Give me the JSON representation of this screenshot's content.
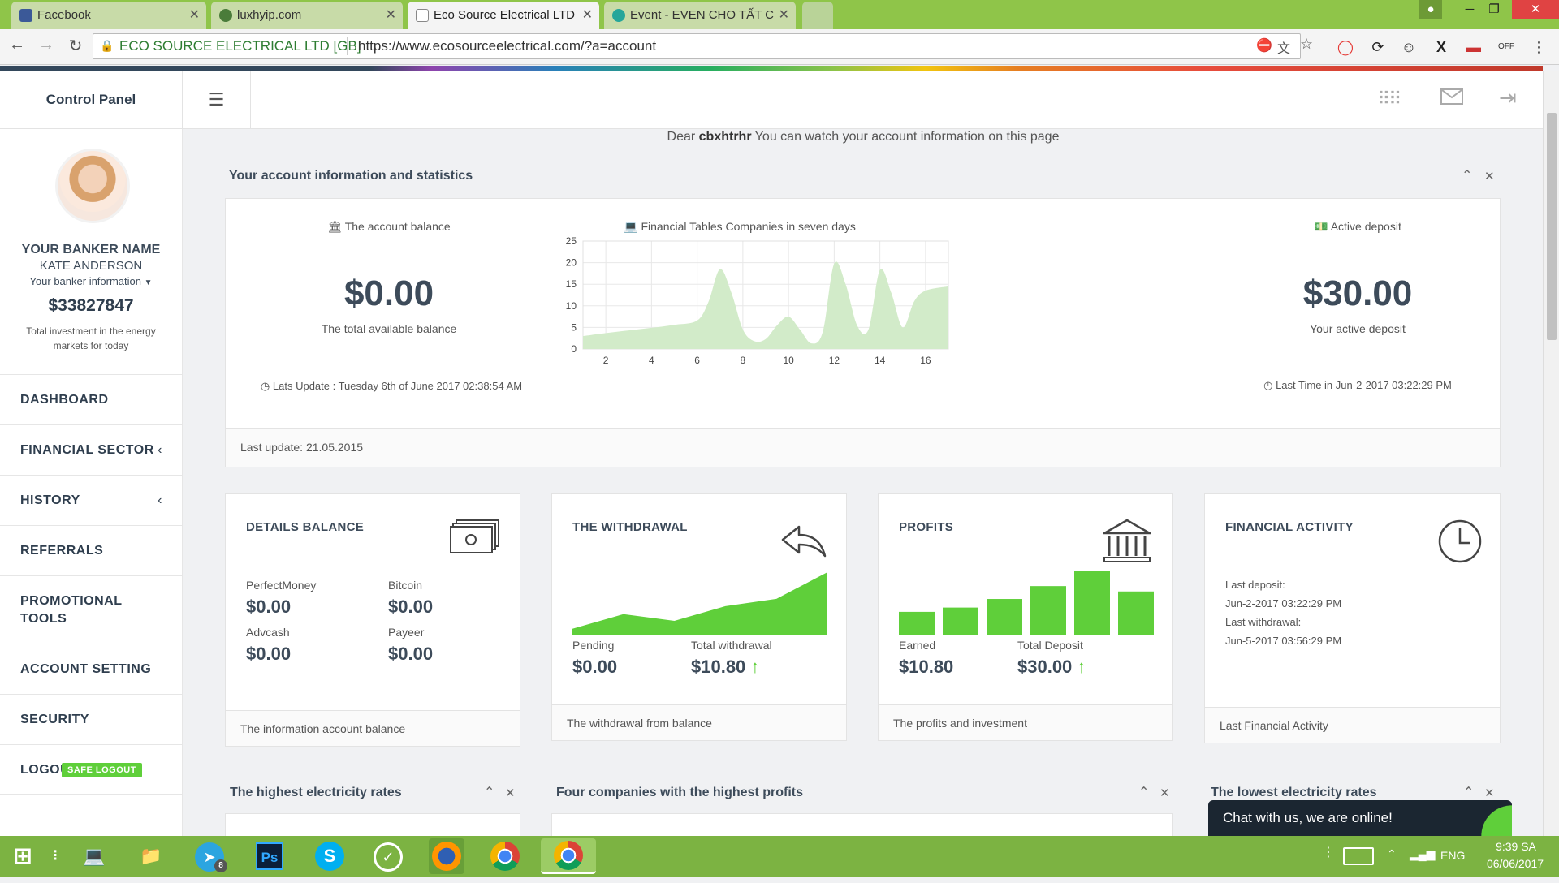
{
  "browser": {
    "tabs": [
      {
        "title": "Facebook",
        "color": "#3b5998"
      },
      {
        "title": "luxhyip.com",
        "color": "#4a7c3a"
      },
      {
        "title": "Eco Source Electrical LTD",
        "color": "#ffffff"
      },
      {
        "title": "Event - EVEN CHO TẤT C",
        "color": "#26a69a"
      }
    ],
    "secure_label": "ECO SOURCE ELECTRICAL LTD [GB]",
    "url": "https://www.ecosourceelectrical.com/?a=account"
  },
  "topnav": {
    "title": "Control Panel"
  },
  "sidebar": {
    "banker_title": "YOUR BANKER NAME",
    "banker_name": "KATE ANDERSON",
    "banker_info": "Your banker information",
    "total": "$33827847",
    "total_desc": "Total investment in the energy markets for today",
    "items": [
      {
        "label": "DASHBOARD"
      },
      {
        "label": "FINANCIAL SECTOR"
      },
      {
        "label": "HISTORY"
      },
      {
        "label": "REFERRALS"
      },
      {
        "label": "PROMOTIONAL TOOLS"
      },
      {
        "label": "ACCOUNT SETTING"
      },
      {
        "label": "SECURITY"
      },
      {
        "label": "LOGOUT"
      }
    ],
    "logout_badge": "SAFE LOGOUT"
  },
  "main": {
    "greeting_prefix": "Dear",
    "username": "cbxhtrhr",
    "greeting_suffix": "You can watch your account information on this page",
    "stats_title": "Your account information and statistics",
    "balance": {
      "label": "The account balance",
      "value": "$0.00",
      "sub": "The total available balance",
      "update": "Lats Update : Tuesday 6th of June 2017 02:38:54 AM"
    },
    "chart_title": "Financial Tables Companies in seven days",
    "deposit": {
      "label": "Active deposit",
      "value": "$30.00",
      "sub": "Your active deposit",
      "update": "Last Time in Jun-2-2017 03:22:29 PM"
    },
    "stats_footer": "Last update: 21.05.2015"
  },
  "chart_data": {
    "type": "area",
    "title": "Financial Tables Companies in seven days",
    "x": [
      1,
      2,
      3,
      4,
      5,
      6,
      6.5,
      7,
      7.5,
      8,
      8.5,
      9,
      9.5,
      10,
      10.5,
      11,
      11.5,
      12,
      12.5,
      13,
      13.5,
      14,
      14.5,
      15,
      15.5,
      16,
      17
    ],
    "values": [
      3,
      3.7,
      4.3,
      4.9,
      5.6,
      6.6,
      11,
      18.5,
      13,
      4.5,
      1.8,
      2.3,
      5.5,
      7.5,
      4.5,
      1.3,
      4,
      19.8,
      15,
      5.5,
      4.5,
      18.3,
      13,
      5,
      11,
      13.5,
      14.5
    ],
    "xticks": [
      2,
      4,
      6,
      8,
      10,
      12,
      14,
      16
    ],
    "yticks": [
      0,
      5,
      10,
      15,
      20,
      25
    ],
    "xlim": [
      1,
      17
    ],
    "ylim": [
      0,
      25
    ],
    "grid": true,
    "color": "#d2ebc9"
  },
  "cards": {
    "details": {
      "title": "DETAILS BALANCE",
      "pm_label": "PerfectMoney",
      "pm_value": "$0.00",
      "btc_label": "Bitcoin",
      "btc_value": "$0.00",
      "adv_label": "Advcash",
      "adv_value": "$0.00",
      "payeer_label": "Payeer",
      "payeer_value": "$0.00",
      "footer": "The information account balance"
    },
    "withdrawal": {
      "title": "THE WITHDRAWAL",
      "pending_label": "Pending",
      "pending_value": "$0.00",
      "total_label": "Total withdrawal",
      "total_value": "$10.80",
      "footer": "The withdrawal from balance",
      "spark": [
        1,
        3.2,
        2.2,
        4.4,
        5.5,
        9.5
      ]
    },
    "profits": {
      "title": "PROFITS",
      "earned_label": "Earned",
      "earned_value": "$10.80",
      "deposit_label": "Total Deposit",
      "deposit_value": "$30.00",
      "footer": "The profits and investment",
      "bars": [
        2.2,
        2.6,
        3.4,
        4.6,
        6.0,
        4.1
      ]
    },
    "activity": {
      "title": "FINANCIAL ACTIVITY",
      "last_deposit_label": "Last deposit:",
      "last_deposit_value": "Jun-2-2017 03:22:29 PM",
      "last_withdrawal_label": "Last withdrawal:",
      "last_withdrawal_value": "Jun-5-2017 03:56:29 PM",
      "footer": "Last Financial Activity"
    }
  },
  "bottom": {
    "highest_rates": "The highest electricity rates",
    "four_companies": "Four companies with the highest profits",
    "lowest_rates": "The lowest electricity rates"
  },
  "chat": {
    "label": "Chat with us, we are online!"
  },
  "taskbar": {
    "lang": "ENG",
    "time": "9:39 SA",
    "date": "06/06/2017",
    "telegram_badge": "8"
  },
  "colors": {
    "accent": "#5fcf3a",
    "taskbar": "#7cb342",
    "chrome_tab": "#8fc549"
  }
}
